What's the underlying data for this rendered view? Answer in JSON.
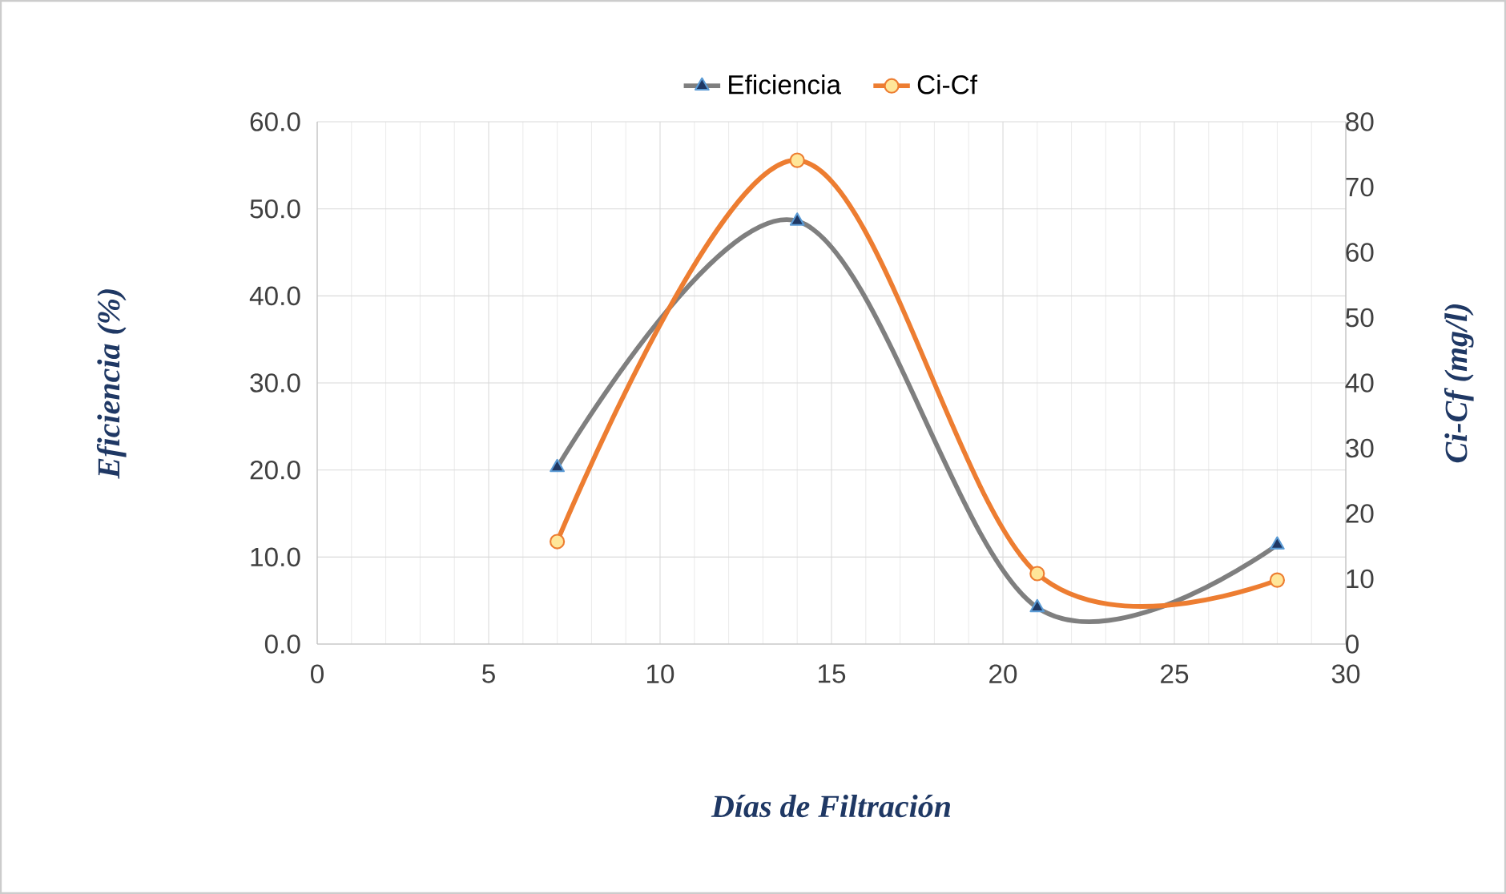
{
  "chart_data": {
    "type": "line",
    "xlabel": "Días de Filtración",
    "ylabel": "Eficiencia (%)",
    "y2label": "Ci-Cf (mg/l)",
    "xlim": [
      0,
      30
    ],
    "xticks": [
      0,
      5,
      10,
      15,
      20,
      25,
      30
    ],
    "ylim": [
      0,
      60
    ],
    "yticks": [
      {
        "value": 0,
        "label": "0.0"
      },
      {
        "value": 10,
        "label": "10.0"
      },
      {
        "value": 20,
        "label": "20.0"
      },
      {
        "value": 30,
        "label": "30.0"
      },
      {
        "value": 40,
        "label": "40.0"
      },
      {
        "value": 50,
        "label": "50.0"
      },
      {
        "value": 60,
        "label": "60.0"
      }
    ],
    "y2lim": [
      0,
      80
    ],
    "y2ticks": [
      0,
      10,
      20,
      30,
      40,
      50,
      60,
      70,
      80
    ],
    "grid": true,
    "legend": "top",
    "series": [
      {
        "name": "Eficiencia",
        "color": "#7f7f7f",
        "marker": "triangle",
        "x": [
          7,
          14,
          21,
          28
        ],
        "values": [
          20.3,
          48.6,
          4.2,
          11.4
        ]
      },
      {
        "name": "Ci-Cf",
        "color": "#ed7d31",
        "marker": "circle",
        "axis": "y2",
        "x": [
          7,
          14,
          21,
          28
        ],
        "values": [
          15.7,
          74.1,
          10.8,
          9.8
        ]
      }
    ]
  }
}
